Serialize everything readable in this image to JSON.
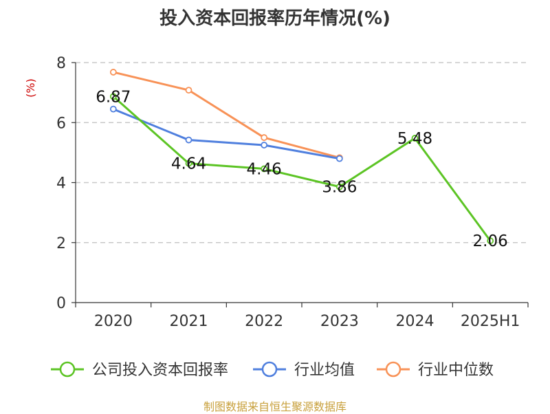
{
  "chart_data": {
    "type": "line",
    "title": "投入资本回报率历年情况(%)",
    "ylabel": "(%)",
    "categories": [
      "2020",
      "2021",
      "2022",
      "2023",
      "2024",
      "2025H1"
    ],
    "ylim": [
      0,
      8
    ],
    "yticks": [
      0,
      2,
      4,
      6,
      8
    ],
    "grid": true,
    "legend_position": "bottom",
    "series": [
      {
        "name": "公司投入资本回报率",
        "color": "#5cc424",
        "values": [
          6.87,
          4.64,
          4.46,
          3.86,
          5.48,
          2.06
        ],
        "data_labels": [
          "6.87",
          "4.64",
          "4.46",
          "3.86",
          "5.48",
          "2.06"
        ]
      },
      {
        "name": "行业均值",
        "color": "#4f7fde",
        "values": [
          6.45,
          5.42,
          5.25,
          4.8,
          null,
          null
        ]
      },
      {
        "name": "行业中位数",
        "color": "#f89257",
        "values": [
          7.68,
          7.08,
          5.5,
          4.83,
          null,
          null
        ]
      }
    ]
  },
  "footer": {
    "source": "制图数据来自恒生聚源数据库"
  }
}
